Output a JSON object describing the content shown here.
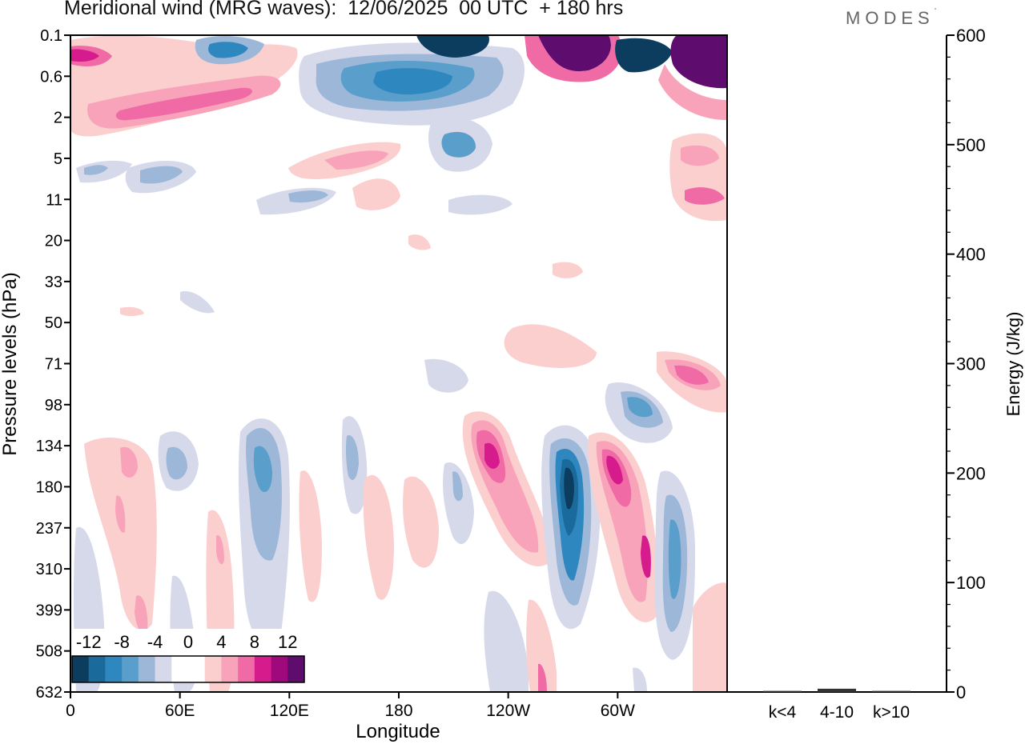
{
  "header": {
    "title": "Meridional wind (MRG waves):  12/06/2025  00 UTC  + 180 hrs",
    "brand": "MODES",
    "brand_mark": "°"
  },
  "chart_data": [
    {
      "type": "heatmap",
      "subtype": "filled-contour",
      "title": "Meridional wind (MRG waves):  12/06/2025  00 UTC  + 180 hrs",
      "xlabel": "Longitude",
      "ylabel": "Pressure levels (hPa)",
      "x_ticks": [
        "0",
        "60E",
        "120E",
        "180",
        "120W",
        "60W"
      ],
      "x_tick_degrees": [
        0,
        60,
        120,
        180,
        240,
        300
      ],
      "xlim": [
        0,
        360
      ],
      "y_ticks": [
        "0.1",
        "0.6",
        "2",
        "5",
        "11",
        "20",
        "33",
        "50",
        "71",
        "98",
        "134",
        "180",
        "237",
        "310",
        "399",
        "508",
        "632"
      ],
      "y_axis": "inverted pressure levels, 0.1 at top",
      "colorbar": {
        "levels": [
          -14,
          -12,
          -10,
          -8,
          -6,
          -4,
          -2,
          0,
          2,
          4,
          6,
          8,
          10,
          12,
          14
        ],
        "labels": [
          "-12",
          "-8",
          "-4",
          "0",
          "4",
          "8",
          "12"
        ],
        "label_values": [
          -12,
          -8,
          -4,
          0,
          4,
          8,
          12
        ],
        "colors": [
          "#0c3d5e",
          "#1a6b9c",
          "#2e88bf",
          "#5a9ecb",
          "#9db7d8",
          "#d6d9ea",
          "#ffffff",
          "#ffffff",
          "#fbcfce",
          "#f9a3bb",
          "#f06aa6",
          "#d61c8c",
          "#9e0a7c",
          "#5e0c6e"
        ],
        "placement": "bottom-left inside plot"
      },
      "features": [
        {
          "region": "upper levels 0.1-2 hPa",
          "description": "strong alternating positive and negative meridional wind cores"
        },
        {
          "region": "upper troposphere 98-632 hPa, 120W-60W",
          "description": "tilted dipole of negative and positive cores, min near -14, max near +12"
        }
      ]
    },
    {
      "type": "bar",
      "ylabel": "Energy (J/kg)",
      "ylim": [
        0,
        600
      ],
      "y_ticks": [
        "0",
        "100",
        "200",
        "300",
        "400",
        "500",
        "600"
      ],
      "y_tick_values": [
        0,
        100,
        200,
        300,
        400,
        500,
        600
      ],
      "categories": [
        "k<4",
        "4-10",
        "k>10"
      ],
      "values": [
        1,
        3,
        1
      ]
    }
  ]
}
